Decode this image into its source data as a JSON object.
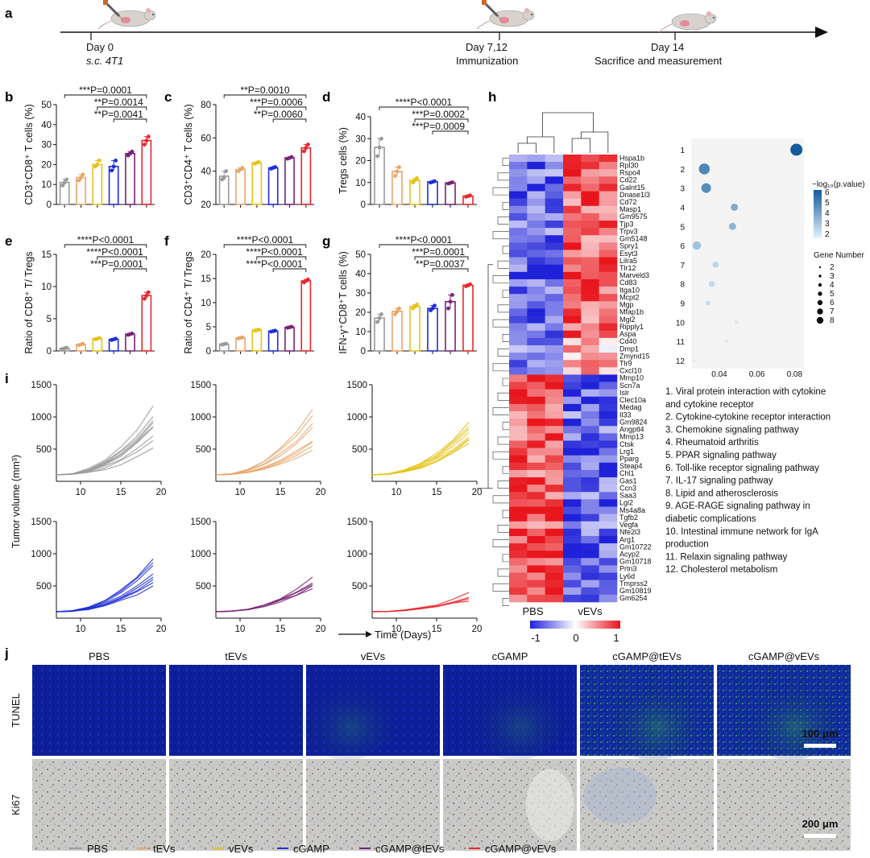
{
  "panel_letters": [
    "a",
    "b",
    "c",
    "d",
    "e",
    "f",
    "g",
    "h",
    "i",
    "j"
  ],
  "timeline": {
    "events": [
      {
        "day": "Day 0",
        "desc": "s.c. 4T1"
      },
      {
        "day": "Day 7,12",
        "desc": "Immunization"
      },
      {
        "day": "Day 14",
        "desc": "Sacrifice and measurement"
      }
    ]
  },
  "colors": {
    "PBS": "#9a9a9a",
    "tEVs": "#e8a66a",
    "vEVs": "#e6c31a",
    "cGAMP": "#1f2fd6",
    "cGAMP@tEVs": "#7a2377",
    "cGAMP@vEVs": "#e8262b"
  },
  "groups": [
    "PBS",
    "tEVs",
    "vEVs",
    "cGAMP",
    "cGAMP@tEVs",
    "cGAMP@vEVs"
  ],
  "legend": {
    "entries": [
      "PBS",
      "tEVs",
      "vEVs",
      "cGAMP",
      "cGAMP@tEVs",
      "cGAMP@vEVs"
    ]
  },
  "chart_data": [
    {
      "panel": "b",
      "type": "bar",
      "ylabel": "CD3⁺CD8⁺ T cells (%)",
      "ylim": [
        0,
        50
      ],
      "yticks": [
        "0",
        "10",
        "20",
        "30",
        "40",
        "50"
      ],
      "values": [
        11,
        13.5,
        20,
        19,
        25.5,
        32
      ],
      "points": [
        [
          9.5,
          11,
          12.5
        ],
        [
          12,
          13.5,
          15
        ],
        [
          19,
          20,
          22
        ],
        [
          17,
          19,
          22
        ],
        [
          24.5,
          25.5,
          26.5
        ],
        [
          30,
          32,
          34
        ]
      ],
      "annotations": [
        {
          "text": "***P=0.0001",
          "from": 0,
          "to": 5
        },
        {
          "text": "**P=0.0014",
          "from": 2,
          "to": 5
        },
        {
          "text": "**P=0.0041",
          "from": 3,
          "to": 5
        }
      ]
    },
    {
      "panel": "c",
      "type": "bar",
      "ylabel": "CD3⁺CD4⁺ T cells (%)",
      "ylim": [
        20,
        80
      ],
      "yticks": [
        "20",
        "40",
        "60",
        "80"
      ],
      "values": [
        37,
        41,
        45,
        42,
        48,
        54
      ],
      "points": [
        [
          35,
          36,
          40
        ],
        [
          40,
          41,
          42
        ],
        [
          44.5,
          45,
          45.5
        ],
        [
          41.5,
          42,
          42.5
        ],
        [
          47.5,
          48,
          48.5
        ],
        [
          52,
          54,
          56
        ]
      ],
      "annotations": [
        {
          "text": "**P=0.0010",
          "from": 0,
          "to": 5
        },
        {
          "text": "***P=0.0006",
          "from": 2,
          "to": 5
        },
        {
          "text": "**P=0.0060",
          "from": 3,
          "to": 5
        }
      ]
    },
    {
      "panel": "d",
      "type": "bar",
      "ylabel": "Tregs cells (%)",
      "ylim": [
        0,
        40
      ],
      "yticks": [
        "0",
        "10",
        "20",
        "30",
        "40"
      ],
      "values": [
        26,
        15,
        11,
        10.3,
        9.8,
        3.8
      ],
      "points": [
        [
          22,
          26,
          30
        ],
        [
          13,
          15,
          17
        ],
        [
          10,
          11,
          12
        ],
        [
          10,
          10.3,
          10.6
        ],
        [
          9.5,
          9.8,
          10.1
        ],
        [
          3.5,
          3.8,
          4.1
        ]
      ],
      "annotations": [
        {
          "text": "****P<0.0001",
          "from": 0,
          "to": 5
        },
        {
          "text": "***P=0.0002",
          "from": 2,
          "to": 5
        },
        {
          "text": "***P=0.0009",
          "from": 3,
          "to": 5
        }
      ]
    },
    {
      "panel": "e",
      "type": "bar",
      "ylabel": "Ratio of CD8⁺ T/ Tregs",
      "ylim": [
        0,
        15
      ],
      "yticks": [
        "0",
        "5",
        "10",
        "15"
      ],
      "values": [
        0.4,
        1,
        1.9,
        1.8,
        2.6,
        8.6
      ],
      "points": [
        [
          0.3,
          0.4,
          0.5
        ],
        [
          0.9,
          1,
          1.1
        ],
        [
          1.8,
          1.9,
          2
        ],
        [
          1.7,
          1.8,
          1.9
        ],
        [
          2.5,
          2.6,
          2.7
        ],
        [
          8.1,
          8.6,
          9.1
        ]
      ],
      "annotations": [
        {
          "text": "****P<0.0001",
          "from": 0,
          "to": 5
        },
        {
          "text": "****P<0.0001",
          "from": 2,
          "to": 5
        },
        {
          "text": "***P=0.0001",
          "from": 3,
          "to": 5
        }
      ]
    },
    {
      "panel": "f",
      "type": "bar",
      "ylabel": "Ratio of CD4⁺ T/ Tregs",
      "ylim": [
        0,
        20
      ],
      "yticks": [
        "0",
        "5",
        "10",
        "15",
        "20"
      ],
      "values": [
        1.4,
        2.7,
        4.3,
        4.1,
        4.9,
        14.5
      ],
      "points": [
        [
          1.3,
          1.4,
          1.5
        ],
        [
          2.6,
          2.7,
          2.8
        ],
        [
          4.2,
          4.3,
          4.4
        ],
        [
          4,
          4.1,
          4.2
        ],
        [
          4.8,
          4.9,
          5
        ],
        [
          14.2,
          14.5,
          14.8
        ]
      ],
      "annotations": [
        {
          "text": "****P<0.0001",
          "from": 0,
          "to": 5
        },
        {
          "text": "****P<0.0001",
          "from": 2,
          "to": 5
        },
        {
          "text": "****P<0.0001",
          "from": 3,
          "to": 5
        }
      ]
    },
    {
      "panel": "g",
      "type": "bar",
      "ylabel": "IFN-γ⁺CD8⁺T cells (%)",
      "ylim": [
        0,
        50
      ],
      "yticks": [
        "0",
        "10",
        "20",
        "30",
        "40",
        "50"
      ],
      "values": [
        17,
        20.5,
        23,
        22,
        25.5,
        34
      ],
      "points": [
        [
          15,
          17,
          19
        ],
        [
          19,
          20.5,
          22
        ],
        [
          22,
          23,
          24
        ],
        [
          21,
          22,
          23.5
        ],
        [
          22,
          25.5,
          29
        ],
        [
          33.5,
          34,
          34.5
        ]
      ],
      "annotations": [
        {
          "text": "****P<0.0001",
          "from": 0,
          "to": 5
        },
        {
          "text": "***P=0.0001",
          "from": 2,
          "to": 5
        },
        {
          "text": "**P=0.0037",
          "from": 3,
          "to": 5
        }
      ]
    },
    {
      "panel": "i",
      "type": "line",
      "ylabel": "Tumor volume (mm³)",
      "xlabel": "Time (Days)",
      "xlim": [
        7,
        20
      ],
      "ylim": [
        0,
        1500
      ],
      "xticks": [
        "10",
        "15",
        "20"
      ],
      "yticks": [
        "500",
        "1000",
        "1500"
      ],
      "x": [
        7,
        9,
        11,
        13,
        15,
        17,
        19
      ],
      "series": [
        {
          "group": "PBS",
          "final": [
            1150,
            1000,
            950,
            900,
            870,
            820,
            700,
            620,
            500
          ]
        },
        {
          "group": "tEVs",
          "final": [
            1100,
            1020,
            900,
            850,
            640,
            600,
            560,
            500
          ]
        },
        {
          "group": "vEVs",
          "final": [
            900,
            850,
            800,
            750,
            700,
            650,
            630,
            600
          ]
        },
        {
          "group": "cGAMP",
          "final": [
            900,
            870,
            800,
            700,
            650,
            600,
            550,
            500
          ]
        },
        {
          "group": "cGAMP@tEVs",
          "final": [
            620,
            560,
            530,
            500,
            470
          ]
        },
        {
          "group": "cGAMP@vEVs",
          "final": [
            380,
            340,
            300,
            280
          ]
        }
      ]
    },
    {
      "panel": "h",
      "type": "heatmap",
      "columns": [
        "PBS",
        "vEVs"
      ],
      "scale": {
        "ticks": [
          "-1",
          "0",
          "1"
        ]
      },
      "genes": [
        "Hspa1b",
        "Rpl30",
        "Rspo4",
        "Cd22",
        "Galnt15",
        "Dnase1l3",
        "Cd72",
        "Masp1",
        "Gm9575",
        "Tjp3",
        "Trpv3",
        "Gm5148",
        "Spry1",
        "Esyt3",
        "Lilra5",
        "Tlr12",
        "Marveld3",
        "Cd83",
        "Itga10",
        "Mcpt2",
        "Mgp",
        "Mfap1b",
        "Mgl2",
        "Ripply1",
        "Aspa",
        "Cd40",
        "Dmp1",
        "Zmynd15",
        "Tlr9",
        "Cxcl10",
        "Mmp10",
        "Scn7a",
        "Islr",
        "Clec10a",
        "Medag",
        "Il33",
        "Gm9824",
        "Angptl4",
        "Mmp13",
        "Ctsk",
        "Lrg1",
        "Pparg",
        "Steap4",
        "Chl1",
        "Gas1",
        "Ccn3",
        "Saa3",
        "Lgi2",
        "Ms4a8a",
        "Tgfb2",
        "Vegfa",
        "Nfe2l3",
        "Arg1",
        "Gm10722",
        "Acyp2",
        "Gm10718",
        "Prtn3",
        "Ly6d",
        "Tmprss2",
        "Gm10819",
        "Gm6254"
      ]
    },
    {
      "panel": "h-bubble",
      "type": "scatter",
      "xticks": [
        "0.04",
        "0.06",
        "0.08"
      ],
      "colorbar_label": "−log₁₀(p.value)",
      "colorbar_ticks": [
        "6",
        "5",
        "4",
        "3",
        "2"
      ],
      "size_label": "Gene Number",
      "size_ticks": [
        "2",
        "3",
        "4",
        "5",
        "6",
        "7",
        "8"
      ],
      "rows": [
        "1",
        "2",
        "3",
        "4",
        "5",
        "6",
        "7",
        "8",
        "9",
        "10",
        "11",
        "12"
      ],
      "points": [
        {
          "row": 1,
          "x": 0.081,
          "size": 8,
          "logp": 6.5
        },
        {
          "row": 2,
          "x": 0.032,
          "size": 7,
          "logp": 5.2
        },
        {
          "row": 3,
          "x": 0.033,
          "size": 6,
          "logp": 5
        },
        {
          "row": 4,
          "x": 0.048,
          "size": 4,
          "logp": 4
        },
        {
          "row": 5,
          "x": 0.047,
          "size": 4,
          "logp": 3.7
        },
        {
          "row": 6,
          "x": 0.028,
          "size": 5,
          "logp": 3.3
        },
        {
          "row": 7,
          "x": 0.038,
          "size": 3,
          "logp": 2.8
        },
        {
          "row": 8,
          "x": 0.036,
          "size": 3,
          "logp": 2.6
        },
        {
          "row": 9,
          "x": 0.034,
          "size": 2,
          "logp": 2.5
        },
        {
          "row": 10,
          "x": 0.049,
          "size": 1,
          "logp": 2.1
        },
        {
          "row": 11,
          "x": 0.044,
          "size": 1,
          "logp": 2
        },
        {
          "row": 12,
          "x": 0.027,
          "size": 1,
          "logp": 1.9
        }
      ]
    }
  ],
  "pathways": [
    "1. Viral protein interaction with cytokine",
    "and cytokine receptor",
    "2. Cytokine-cytokine receptor interaction",
    "3. Chemokine signaling pathway",
    "4. Rheumatoid arthritis",
    "5. PPAR signaling pathway",
    "6. Toll-like receptor signaling pathway",
    "7. IL-17 signaling pathway",
    "8. Lipid and atherosclerosis",
    "9. AGE-RAGE signaling pathway in",
    "diabetic complications",
    "10. Intestinal immune network for IgA",
    "production",
    "11. Relaxin signaling pathway",
    "12. Cholesterol metabolism"
  ],
  "micrographs": {
    "columns": [
      "PBS",
      "tEVs",
      "vEVs",
      "cGAMP",
      "cGAMP@tEVs",
      "cGAMP@vEVs"
    ],
    "rows": [
      "TUNEL",
      "Ki67"
    ],
    "scalebars": [
      "100 μm",
      "200 μm"
    ]
  }
}
